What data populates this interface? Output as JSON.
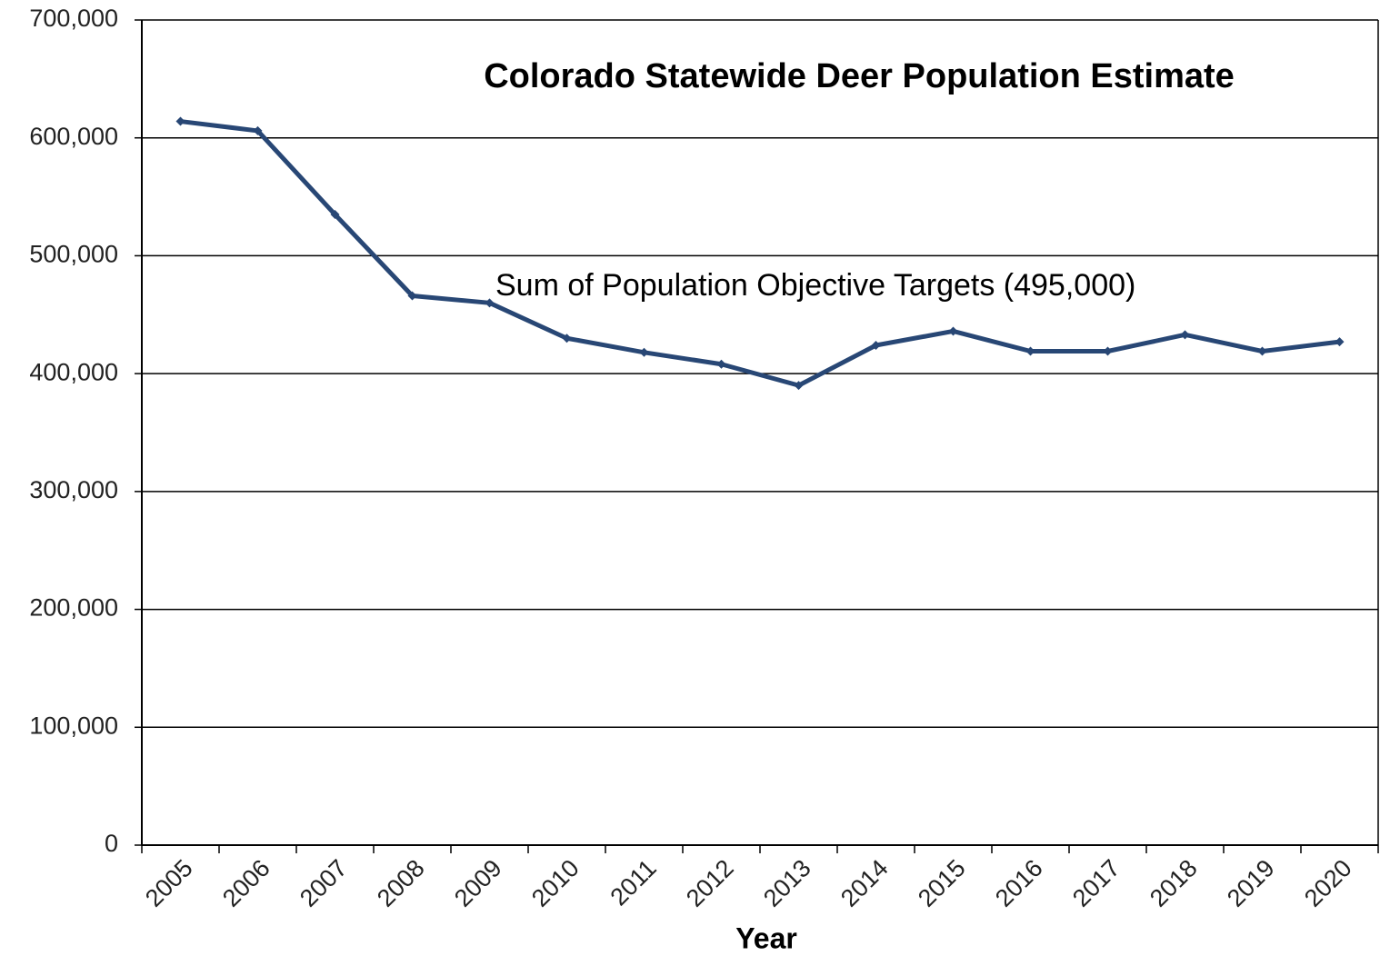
{
  "chart_data": {
    "type": "line",
    "title": "Colorado Statewide Deer Population Estimate",
    "xlabel": "Year",
    "annotation": "Sum of  Population Objective Targets (495,000)",
    "categories": [
      "2005",
      "2006",
      "2007",
      "2008",
      "2009",
      "2010",
      "2011",
      "2012",
      "2013",
      "2014",
      "2015",
      "2016",
      "2017",
      "2018",
      "2019",
      "2020"
    ],
    "series": [
      {
        "name": "Deer population estimate",
        "color": "#284775",
        "values": [
          614000,
          606000,
          535000,
          466000,
          460000,
          430000,
          418000,
          408000,
          390000,
          424000,
          436000,
          419000,
          419000,
          433000,
          419000,
          427000
        ]
      }
    ],
    "ylim": [
      0,
      700000
    ],
    "yticks": [
      0,
      {
        "value": 100000,
        "label": "100,000"
      },
      {
        "value": 200000,
        "label": "200,000"
      },
      {
        "value": 300000,
        "label": "300,000"
      },
      {
        "value": 400000,
        "label": "400,000"
      },
      {
        "value": 500000,
        "label": "500,000"
      },
      {
        "value": 600000,
        "label": "600,000"
      },
      {
        "value": 700000,
        "label": "700,000"
      }
    ],
    "grid": true
  }
}
